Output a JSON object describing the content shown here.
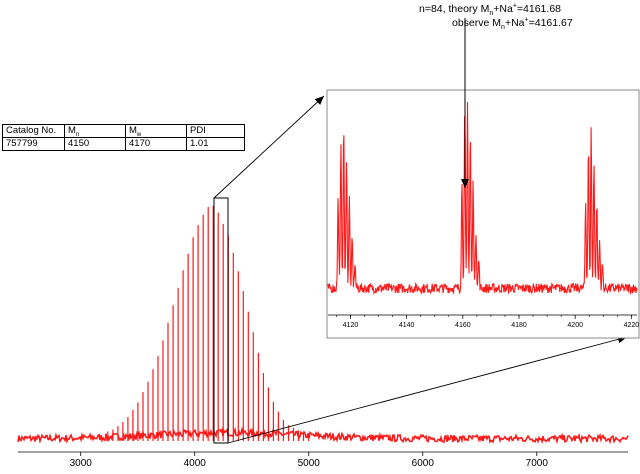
{
  "annotation": {
    "theory": {
      "prefix": "n=84, theory M",
      "sub": "n",
      "mid": "+Na",
      "sup": "+",
      "suffix": "=4161.68"
    },
    "observe": {
      "prefix": "observe M",
      "sub": "n",
      "mid": "+Na",
      "sup": "+",
      "suffix": "=4161.67"
    }
  },
  "table": {
    "headers": [
      {
        "main": "Catalog No.",
        "sub": ""
      },
      {
        "main": "M",
        "sub": "n"
      },
      {
        "main": "M",
        "sub": "w"
      },
      {
        "main": "PDI",
        "sub": ""
      }
    ],
    "row": [
      "757799",
      "4150",
      "4170",
      "1.01"
    ]
  },
  "colors": {
    "spectrum": "#ff1a1a",
    "axis": "#000000"
  },
  "chart_data": [
    {
      "type": "line",
      "title": "",
      "xlabel": "",
      "ylabel": "",
      "xlim": [
        2450,
        7800
      ],
      "ylim": [
        0,
        1
      ],
      "x_ticks": [
        3000,
        4000,
        5000,
        6000,
        7000
      ],
      "grid": false,
      "peak_spacing": 44,
      "series": [
        {
          "x": [
            3200,
            3300,
            3400,
            3500,
            3600,
            3700,
            3800,
            3900,
            4000,
            4100,
            4150,
            4200,
            4300,
            4400,
            4500,
            4600,
            4700,
            4800,
            5000
          ],
          "y": [
            0.02,
            0.04,
            0.08,
            0.15,
            0.25,
            0.38,
            0.55,
            0.72,
            0.88,
            0.98,
            1.0,
            0.97,
            0.86,
            0.68,
            0.48,
            0.28,
            0.14,
            0.06,
            0.01
          ]
        }
      ],
      "baseline_noise": 0.03
    },
    {
      "type": "line",
      "title": "",
      "xlabel": "",
      "ylabel": "",
      "xlim": [
        4112,
        4222
      ],
      "ylim": [
        0,
        1
      ],
      "x_ticks": [
        4120,
        4140,
        4160,
        4180,
        4200,
        4220
      ],
      "grid": false,
      "peaks": [
        {
          "x": 4117.6,
          "y": 0.85
        },
        {
          "x": 4161.67,
          "y": 1.0
        },
        {
          "x": 4205.7,
          "y": 0.82
        }
      ],
      "annotation": "n=84, observe 4161.67"
    }
  ]
}
